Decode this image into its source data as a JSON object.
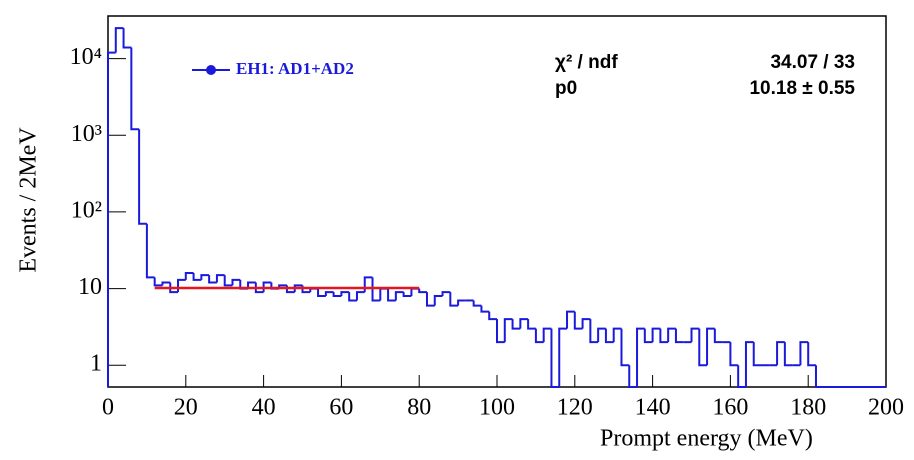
{
  "chart_data": {
    "type": "histogram",
    "xlabel": "Prompt energy (MeV)",
    "ylabel": "Events / 2MeV",
    "bins": [
      0,
      2,
      4,
      6,
      8,
      10,
      12,
      14,
      16,
      18,
      20,
      22,
      24,
      26,
      28,
      30,
      32,
      34,
      36,
      38,
      40,
      42,
      44,
      46,
      48,
      50,
      52,
      54,
      56,
      58,
      60,
      62,
      64,
      66,
      68,
      70,
      72,
      74,
      76,
      78,
      80,
      82,
      84,
      86,
      88,
      90,
      92,
      94,
      96,
      98,
      100,
      102,
      104,
      106,
      108,
      110,
      112,
      114,
      116,
      118,
      120,
      122,
      124,
      126,
      128,
      130,
      132,
      134,
      136,
      138,
      140,
      142,
      144,
      146,
      148,
      150,
      152,
      154,
      156,
      158,
      160,
      162,
      164,
      166,
      168,
      170,
      172,
      174,
      176,
      178,
      180,
      182,
      184,
      186,
      188,
      190,
      192,
      194,
      196,
      198,
      200
    ],
    "series": [
      {
        "name": "EH1: AD1+AD2",
        "color": "#1a1adb",
        "values": [
          12000,
          25000,
          14000,
          1200,
          70,
          14,
          11,
          12,
          9,
          13,
          16,
          13,
          15,
          12,
          15,
          11,
          13,
          10,
          12,
          9,
          12,
          10,
          11,
          9,
          11,
          9,
          10,
          8,
          9,
          8,
          9,
          7,
          9,
          14,
          7,
          10,
          7,
          9,
          8,
          10,
          9,
          6,
          8,
          9,
          6,
          7,
          7,
          6,
          5,
          4,
          2,
          4,
          3,
          4,
          3,
          2,
          3,
          0,
          3,
          5,
          3,
          4,
          2,
          3,
          2,
          3,
          1,
          0,
          3,
          2,
          3,
          2,
          3,
          2,
          2,
          3,
          1,
          3,
          2,
          2,
          1,
          0,
          2,
          1,
          1,
          1,
          2,
          1,
          1,
          2,
          1,
          0,
          0,
          0,
          0,
          0,
          0,
          0,
          0,
          0
        ]
      }
    ],
    "fit": {
      "x": [
        12,
        80
      ],
      "value": 10.18,
      "color": "#e8141e"
    },
    "stats": {
      "labels": [
        "χ² / ndf",
        "p0"
      ],
      "values": [
        "34.07 / 33",
        "10.18 ± 0.55"
      ]
    },
    "xlim": [
      0,
      200
    ],
    "xticks": [
      0,
      20,
      40,
      60,
      80,
      100,
      120,
      140,
      160,
      180,
      200
    ],
    "ylim": [
      0.52,
      36000
    ],
    "log_y": true,
    "yticks": [
      1,
      10,
      {
        "value": 100,
        "label": "10²"
      },
      {
        "value": 1000,
        "label": "10³"
      },
      {
        "value": 10000,
        "label": "10⁴"
      }
    ]
  }
}
